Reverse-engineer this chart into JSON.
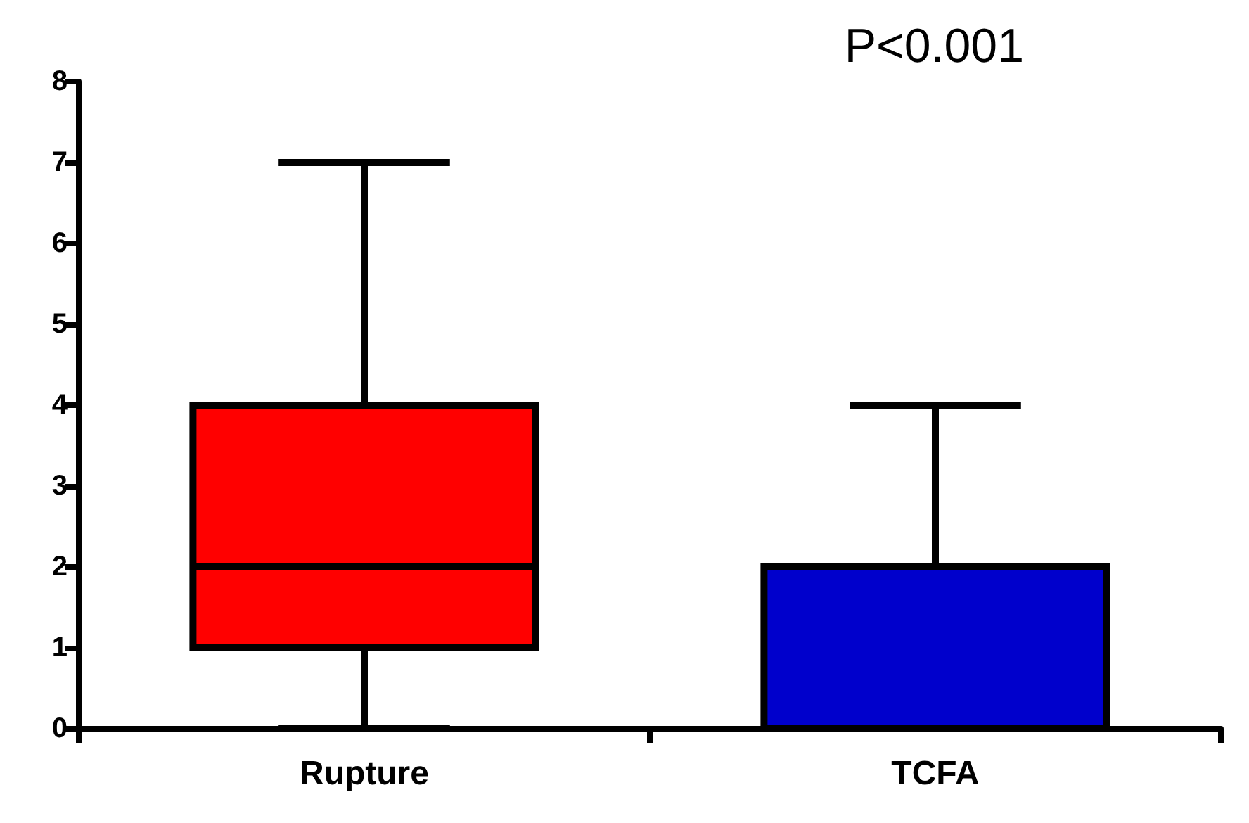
{
  "chart_data": {
    "type": "box",
    "categories": [
      "Rupture",
      "TCFA"
    ],
    "boxes": [
      {
        "low": 0,
        "q1": 1,
        "median": 2,
        "q3": 4,
        "high": 7
      },
      {
        "low": 0,
        "q1": 0,
        "median": 0,
        "q3": 2,
        "high": 4
      }
    ],
    "colors": [
      "#ff0000",
      "#0000cc"
    ],
    "ylim": [
      0,
      8
    ],
    "yticks": [
      0,
      1,
      2,
      3,
      4,
      5,
      6,
      7,
      8
    ],
    "grid": false,
    "annotations": [
      "P<0.001"
    ]
  }
}
